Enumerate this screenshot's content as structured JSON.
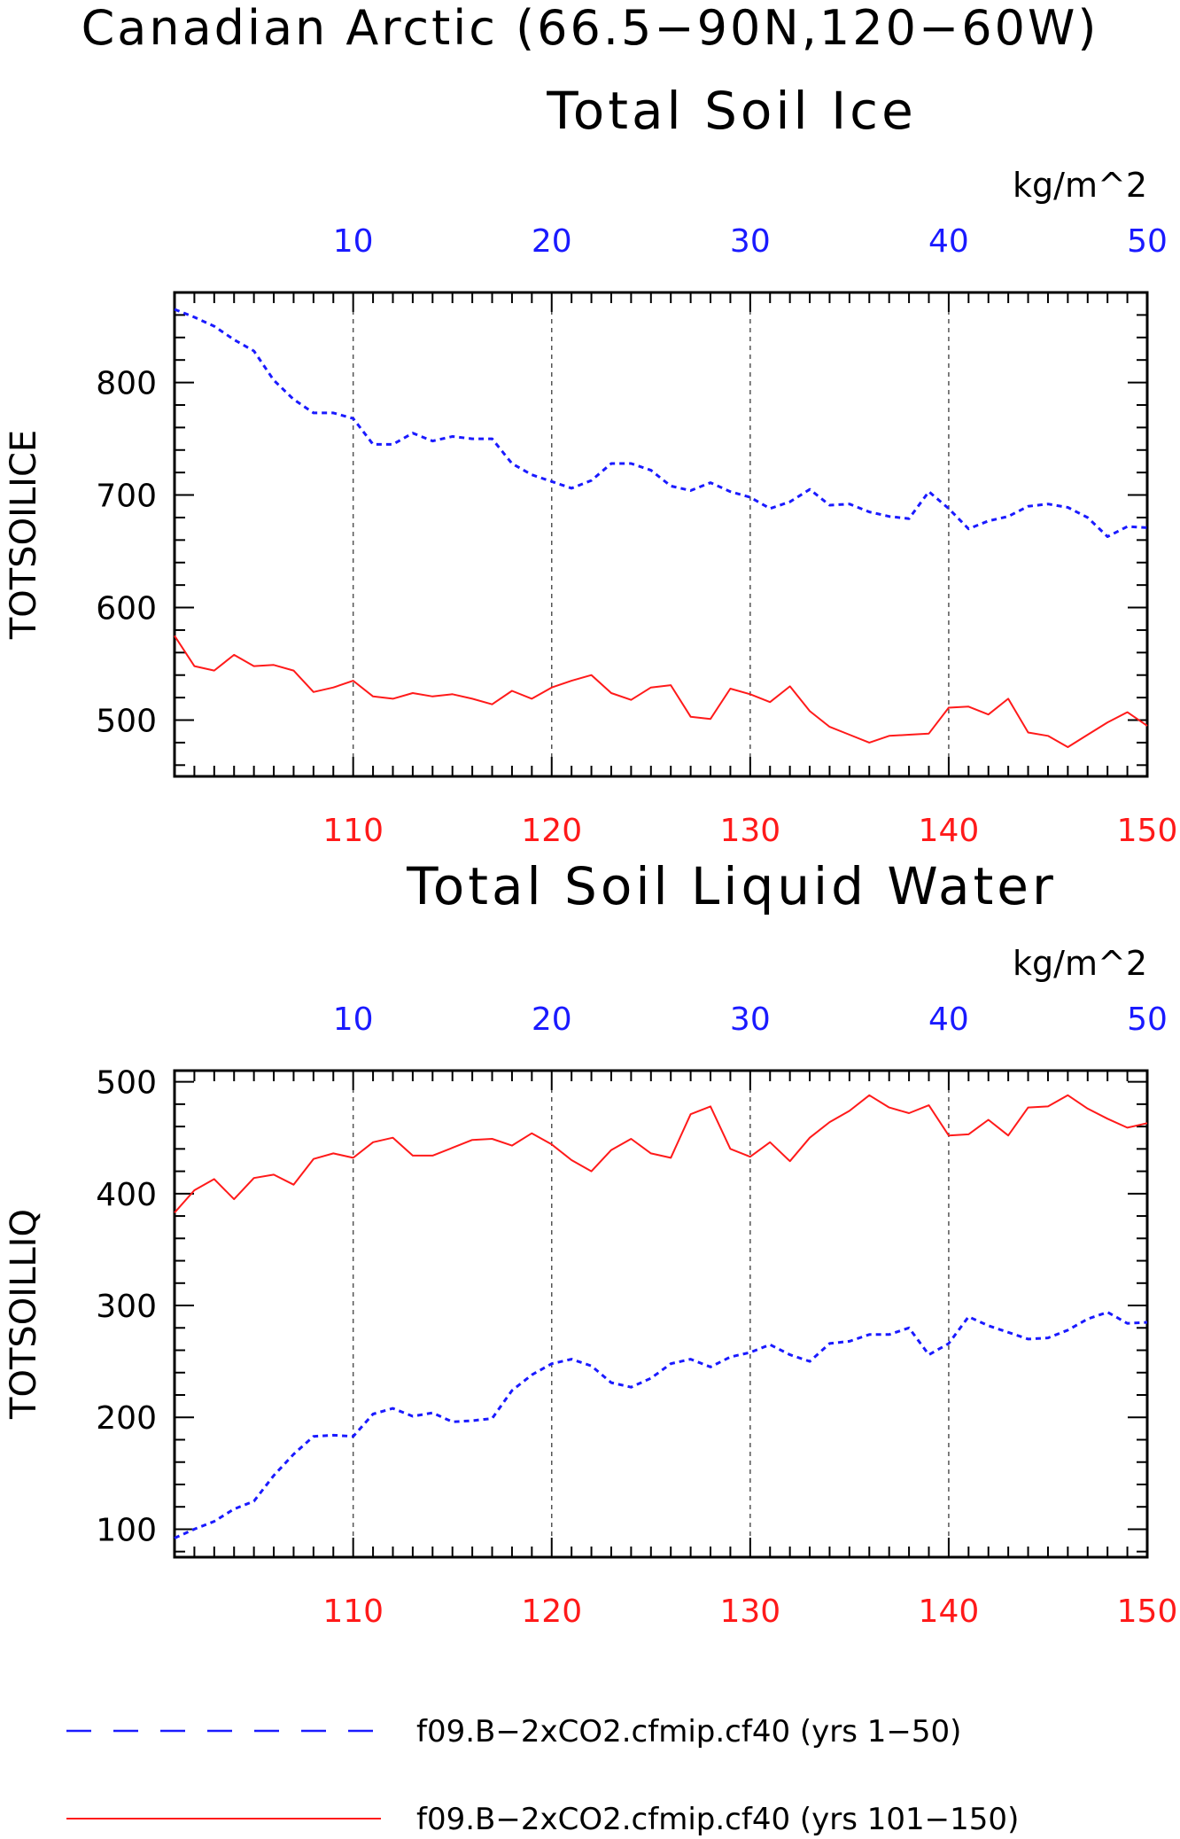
{
  "main_title": "Canadian Arctic (66.5−90N,120−60W)",
  "colors": {
    "blue": "#1a1aff",
    "red": "#ff1a1a",
    "axis": "#000000",
    "grid": "#555555"
  },
  "legend": [
    {
      "label": "f09.B−2xCO2.cfmip.cf40 (yrs 1−50)",
      "color": "#1a1aff",
      "style": "dashed"
    },
    {
      "label": "f09.B−2xCO2.cfmip.cf40 (yrs 101−150)",
      "color": "#ff1a1a",
      "style": "solid"
    }
  ],
  "chart_data": [
    {
      "type": "line",
      "title": "Total Soil Ice",
      "ylabel": "TOTSOILICE",
      "units": "kg/m^2",
      "ylim": [
        450,
        880
      ],
      "yticks": [
        500,
        600,
        700,
        800
      ],
      "x_top": {
        "range": [
          1,
          50
        ],
        "ticks": [
          10,
          20,
          30,
          40,
          50
        ]
      },
      "x_bottom": {
        "range": [
          101,
          150
        ],
        "ticks": [
          110,
          120,
          130,
          140,
          150
        ]
      },
      "grid_x": [
        10,
        20,
        30,
        40
      ],
      "series": [
        {
          "name": "f09.B−2xCO2.cfmip.cf40 (yrs 1−50)",
          "axis": "top",
          "style": "dashed",
          "color": "#1a1aff",
          "x": [
            1,
            2,
            3,
            4,
            5,
            6,
            7,
            8,
            9,
            10,
            11,
            12,
            13,
            14,
            15,
            16,
            17,
            18,
            19,
            20,
            21,
            22,
            23,
            24,
            25,
            26,
            27,
            28,
            29,
            30,
            31,
            32,
            33,
            34,
            35,
            36,
            37,
            38,
            39,
            40,
            41,
            42,
            43,
            44,
            45,
            46,
            47,
            48,
            49,
            50
          ],
          "values": [
            865,
            858,
            850,
            838,
            828,
            802,
            785,
            773,
            773,
            768,
            745,
            745,
            755,
            748,
            752,
            750,
            750,
            728,
            718,
            712,
            706,
            713,
            728,
            728,
            722,
            708,
            704,
            711,
            703,
            698,
            688,
            694,
            705,
            691,
            692,
            685,
            681,
            679,
            703,
            688,
            670,
            677,
            681,
            690,
            692,
            689,
            680,
            663,
            672,
            671
          ]
        },
        {
          "name": "f09.B−2xCO2.cfmip.cf40 (yrs 101−150)",
          "axis": "bottom",
          "style": "solid",
          "color": "#ff1a1a",
          "x": [
            101,
            102,
            103,
            104,
            105,
            106,
            107,
            108,
            109,
            110,
            111,
            112,
            113,
            114,
            115,
            116,
            117,
            118,
            119,
            120,
            121,
            122,
            123,
            124,
            125,
            126,
            127,
            128,
            129,
            130,
            131,
            132,
            133,
            134,
            135,
            136,
            137,
            138,
            139,
            140,
            141,
            142,
            143,
            144,
            145,
            146,
            147,
            148,
            149,
            150
          ],
          "values": [
            575,
            548,
            544,
            558,
            548,
            549,
            544,
            525,
            529,
            535,
            521,
            519,
            524,
            521,
            523,
            519,
            514,
            526,
            519,
            529,
            535,
            540,
            524,
            518,
            529,
            531,
            503,
            501,
            528,
            523,
            516,
            530,
            508,
            494,
            487,
            480,
            486,
            487,
            488,
            511,
            512,
            505,
            519,
            489,
            486,
            476,
            487,
            498,
            507,
            495
          ]
        }
      ]
    },
    {
      "type": "line",
      "title": "Total Soil Liquid Water",
      "ylabel": "TOTSOILLIQ",
      "units": "kg/m^2",
      "ylim": [
        75,
        510
      ],
      "yticks": [
        100,
        200,
        300,
        400,
        500
      ],
      "x_top": {
        "range": [
          1,
          50
        ],
        "ticks": [
          10,
          20,
          30,
          40,
          50
        ]
      },
      "x_bottom": {
        "range": [
          101,
          150
        ],
        "ticks": [
          110,
          120,
          130,
          140,
          150
        ]
      },
      "grid_x": [
        10,
        20,
        30,
        40
      ],
      "series": [
        {
          "name": "f09.B−2xCO2.cfmip.cf40 (yrs 1−50)",
          "axis": "top",
          "style": "dashed",
          "color": "#1a1aff",
          "x": [
            1,
            2,
            3,
            4,
            5,
            6,
            7,
            8,
            9,
            10,
            11,
            12,
            13,
            14,
            15,
            16,
            17,
            18,
            19,
            20,
            21,
            22,
            23,
            24,
            25,
            26,
            27,
            28,
            29,
            30,
            31,
            32,
            33,
            34,
            35,
            36,
            37,
            38,
            39,
            40,
            41,
            42,
            43,
            44,
            45,
            46,
            47,
            48,
            49,
            50
          ],
          "values": [
            92,
            100,
            107,
            118,
            125,
            148,
            167,
            183,
            184,
            183,
            203,
            208,
            201,
            204,
            196,
            197,
            199,
            224,
            238,
            248,
            252,
            246,
            231,
            227,
            235,
            248,
            252,
            245,
            254,
            258,
            265,
            256,
            250,
            266,
            268,
            274,
            274,
            280,
            256,
            266,
            290,
            282,
            276,
            270,
            271,
            278,
            288,
            294,
            284,
            285
          ]
        },
        {
          "name": "f09.B−2xCO2.cfmip.cf40 (yrs 101−150)",
          "axis": "bottom",
          "style": "solid",
          "color": "#ff1a1a",
          "x": [
            101,
            102,
            103,
            104,
            105,
            106,
            107,
            108,
            109,
            110,
            111,
            112,
            113,
            114,
            115,
            116,
            117,
            118,
            119,
            120,
            121,
            122,
            123,
            124,
            125,
            126,
            127,
            128,
            129,
            130,
            131,
            132,
            133,
            134,
            135,
            136,
            137,
            138,
            139,
            140,
            141,
            142,
            143,
            144,
            145,
            146,
            147,
            148,
            149,
            150
          ],
          "values": [
            383,
            403,
            413,
            395,
            414,
            417,
            408,
            431,
            436,
            432,
            446,
            450,
            434,
            434,
            441,
            448,
            449,
            443,
            454,
            444,
            430,
            420,
            439,
            449,
            436,
            432,
            471,
            478,
            440,
            433,
            446,
            429,
            450,
            464,
            474,
            488,
            477,
            472,
            479,
            452,
            453,
            466,
            452,
            477,
            478,
            488,
            476,
            467,
            459,
            463
          ]
        }
      ]
    }
  ]
}
